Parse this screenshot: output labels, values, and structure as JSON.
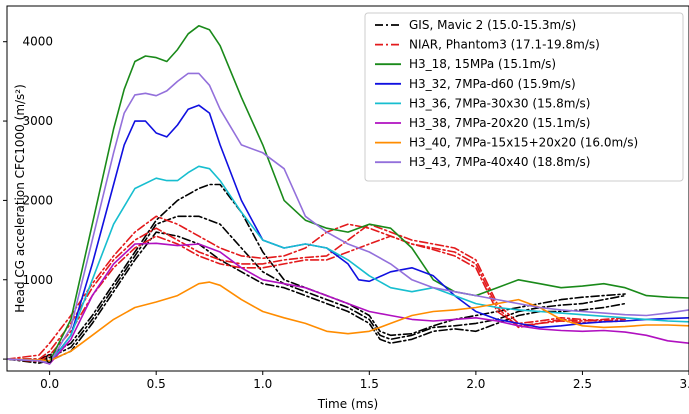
{
  "chart_data": {
    "type": "line",
    "title": "",
    "xlabel": "Time (ms)",
    "ylabel": "Head CG acceleration CFC1000 (m/s²)",
    "xlim": [
      -0.2,
      3.0
    ],
    "ylim": [
      -150,
      4450
    ],
    "x_ticks": [
      0.0,
      0.5,
      1.0,
      1.5,
      2.0,
      2.5,
      3.0
    ],
    "x_tick_labels": [
      "0.0",
      "0.5",
      "1.0",
      "1.5",
      "2.0",
      "2.5",
      "3.0"
    ],
    "y_ticks": [
      0,
      1000,
      2000,
      3000,
      4000
    ],
    "y_tick_labels": [
      "0",
      "1000",
      "2000",
      "3000",
      "4000"
    ],
    "grid": false,
    "legend_position": "top-right",
    "series": [
      {
        "name": "GIS, Mavic 2 (15.0-15.3m/s)",
        "color": "#000000",
        "dash": "dashdot",
        "traces": [
          {
            "x": [
              -0.2,
              -0.05,
              0.0,
              0.1,
              0.2,
              0.3,
              0.4,
              0.5,
              0.6,
              0.7,
              0.75,
              0.8,
              0.9,
              1.0,
              1.1,
              1.2,
              1.3,
              1.4,
              1.5,
              1.55,
              1.6,
              1.7,
              1.8,
              1.9,
              2.0,
              2.1,
              2.2,
              2.3,
              2.4,
              2.5,
              2.6,
              2.7
            ],
            "y": [
              0,
              0,
              50,
              200,
              550,
              950,
              1350,
              1750,
              2000,
              2150,
              2200,
              2200,
              1850,
              1350,
              1000,
              900,
              800,
              700,
              550,
              350,
              300,
              320,
              420,
              500,
              550,
              600,
              650,
              700,
              750,
              780,
              800,
              820
            ]
          },
          {
            "x": [
              -0.2,
              -0.05,
              0.0,
              0.1,
              0.2,
              0.3,
              0.4,
              0.5,
              0.6,
              0.7,
              0.75,
              0.8,
              0.9,
              1.0,
              1.1,
              1.2,
              1.3,
              1.4,
              1.5,
              1.55,
              1.6,
              1.7,
              1.8,
              1.9,
              2.0,
              2.1,
              2.2,
              2.3,
              2.4,
              2.5,
              2.6,
              2.7
            ],
            "y": [
              0,
              -30,
              20,
              150,
              500,
              900,
              1300,
              1700,
              1800,
              1800,
              1750,
              1700,
              1400,
              1100,
              950,
              850,
              750,
              650,
              500,
              300,
              250,
              300,
              400,
              420,
              450,
              500,
              600,
              650,
              680,
              700,
              750,
              800
            ]
          },
          {
            "x": [
              -0.2,
              -0.05,
              0.0,
              0.1,
              0.2,
              0.3,
              0.4,
              0.5,
              0.6,
              0.7,
              0.75,
              0.8,
              0.9,
              1.0,
              1.1,
              1.2,
              1.3,
              1.4,
              1.5,
              1.55,
              1.6,
              1.7,
              1.8,
              1.9,
              2.0,
              2.1,
              2.2,
              2.3,
              2.4,
              2.5,
              2.6,
              2.7
            ],
            "y": [
              0,
              -50,
              -20,
              100,
              450,
              850,
              1250,
              1600,
              1550,
              1450,
              1350,
              1250,
              1100,
              950,
              900,
              800,
              700,
              600,
              450,
              250,
              200,
              250,
              350,
              380,
              350,
              450,
              550,
              600,
              600,
              620,
              650,
              700
            ]
          }
        ]
      },
      {
        "name": "NIAR, Phantom3 (17.1-19.8m/s)",
        "color": "#e31a1c",
        "dash": "dashdot",
        "traces": [
          {
            "x": [
              -0.2,
              -0.05,
              0.0,
              0.1,
              0.2,
              0.3,
              0.4,
              0.5,
              0.6,
              0.7,
              0.8,
              0.9,
              1.0,
              1.1,
              1.2,
              1.3,
              1.4,
              1.5,
              1.6,
              1.7,
              1.8,
              1.9,
              2.0,
              2.1,
              2.2,
              2.3,
              2.4,
              2.5,
              2.6,
              2.7
            ],
            "y": [
              0,
              50,
              200,
              550,
              950,
              1300,
              1600,
              1800,
              1700,
              1550,
              1400,
              1300,
              1270,
              1300,
              1400,
              1600,
              1700,
              1650,
              1550,
              1450,
              1400,
              1350,
              1200,
              650,
              400,
              450,
              500,
              480,
              500,
              520
            ]
          },
          {
            "x": [
              -0.2,
              -0.05,
              0.0,
              0.1,
              0.2,
              0.3,
              0.4,
              0.5,
              0.6,
              0.7,
              0.8,
              0.9,
              1.0,
              1.1,
              1.2,
              1.3,
              1.4,
              1.5,
              1.6,
              1.7,
              1.8,
              1.9,
              2.0,
              2.1,
              2.2,
              2.3,
              2.4,
              2.5,
              2.6,
              2.7
            ],
            "y": [
              0,
              0,
              100,
              450,
              900,
              1250,
              1500,
              1650,
              1500,
              1350,
              1250,
              1200,
              1200,
              1250,
              1280,
              1300,
              1500,
              1700,
              1600,
              1500,
              1450,
              1400,
              1250,
              700,
              450,
              480,
              520,
              500,
              480,
              500
            ]
          },
          {
            "x": [
              -0.2,
              -0.05,
              0.0,
              0.1,
              0.2,
              0.3,
              0.4,
              0.5,
              0.6,
              0.7,
              0.8,
              0.9,
              1.0,
              1.1,
              1.2,
              1.3,
              1.4,
              1.5,
              1.6,
              1.7,
              1.8,
              1.9,
              2.0,
              2.1,
              2.2,
              2.3,
              2.4,
              2.5,
              2.6,
              2.7
            ],
            "y": [
              0,
              -30,
              50,
              350,
              800,
              1150,
              1400,
              1550,
              1450,
              1300,
              1200,
              1150,
              1150,
              1200,
              1250,
              1250,
              1350,
              1450,
              1550,
              1450,
              1380,
              1300,
              1150,
              600,
              420,
              450,
              480,
              460,
              470,
              480
            ]
          }
        ]
      },
      {
        "name": "H3_18, 15MPa (15.1m/s)",
        "color": "#1a8a1a",
        "dash": "solid",
        "traces": [
          {
            "x": [
              -0.2,
              -0.05,
              0.0,
              0.1,
              0.2,
              0.3,
              0.35,
              0.4,
              0.45,
              0.5,
              0.55,
              0.6,
              0.65,
              0.7,
              0.75,
              0.8,
              0.9,
              1.0,
              1.1,
              1.2,
              1.3,
              1.4,
              1.5,
              1.6,
              1.7,
              1.8,
              1.9,
              2.0,
              2.1,
              2.2,
              2.3,
              2.4,
              2.5,
              2.6,
              2.7,
              2.8,
              2.9,
              3.0
            ],
            "y": [
              0,
              -20,
              -30,
              500,
              1700,
              2900,
              3400,
              3750,
              3820,
              3800,
              3750,
              3900,
              4100,
              4200,
              4150,
              3950,
              3300,
              2700,
              2000,
              1750,
              1650,
              1600,
              1700,
              1650,
              1400,
              1000,
              850,
              800,
              900,
              1000,
              950,
              900,
              920,
              950,
              900,
              800,
              780,
              770
            ]
          }
        ]
      },
      {
        "name": "H3_32, 7MPa-d60 (15.9m/s)",
        "color": "#1010e0",
        "dash": "solid",
        "traces": [
          {
            "x": [
              -0.2,
              -0.05,
              0.0,
              0.1,
              0.2,
              0.3,
              0.35,
              0.4,
              0.45,
              0.5,
              0.55,
              0.6,
              0.65,
              0.7,
              0.75,
              0.8,
              0.9,
              1.0,
              1.1,
              1.2,
              1.3,
              1.4,
              1.45,
              1.5,
              1.6,
              1.7,
              1.8,
              1.9,
              2.0,
              2.1,
              2.2,
              2.3,
              2.4,
              2.5,
              2.6,
              2.7,
              2.8,
              2.9,
              3.0
            ],
            "y": [
              0,
              -20,
              -50,
              300,
              1200,
              2200,
              2700,
              3000,
              3000,
              2850,
              2800,
              2950,
              3150,
              3200,
              3100,
              2700,
              2000,
              1500,
              1400,
              1450,
              1400,
              1200,
              1000,
              980,
              1100,
              1150,
              1050,
              800,
              600,
              500,
              450,
              400,
              420,
              450,
              470,
              480,
              500,
              510,
              520
            ]
          }
        ]
      },
      {
        "name": "H3_36, 7MPa-30x30 (15.8m/s)",
        "color": "#17becf",
        "dash": "solid",
        "traces": [
          {
            "x": [
              -0.2,
              -0.05,
              0.0,
              0.1,
              0.2,
              0.3,
              0.4,
              0.5,
              0.55,
              0.6,
              0.65,
              0.7,
              0.75,
              0.8,
              0.9,
              1.0,
              1.1,
              1.2,
              1.3,
              1.4,
              1.5,
              1.6,
              1.7,
              1.8,
              1.9,
              2.0,
              2.1,
              2.2,
              2.3,
              2.4,
              2.5,
              2.6,
              2.7,
              2.8,
              2.9,
              3.0
            ],
            "y": [
              0,
              -20,
              -60,
              300,
              1000,
              1700,
              2150,
              2280,
              2250,
              2250,
              2350,
              2430,
              2400,
              2250,
              1850,
              1500,
              1400,
              1450,
              1400,
              1250,
              1050,
              900,
              850,
              900,
              800,
              700,
              650,
              620,
              600,
              580,
              560,
              540,
              520,
              500,
              480,
              470
            ]
          }
        ]
      },
      {
        "name": "H3_38, 7MPa-20x20 (15.1m/s)",
        "color": "#b010c0",
        "dash": "solid",
        "traces": [
          {
            "x": [
              -0.2,
              -0.05,
              0.0,
              0.1,
              0.2,
              0.3,
              0.4,
              0.5,
              0.6,
              0.7,
              0.8,
              0.9,
              1.0,
              1.1,
              1.2,
              1.3,
              1.4,
              1.5,
              1.6,
              1.7,
              1.8,
              1.9,
              2.0,
              2.1,
              2.2,
              2.3,
              2.4,
              2.5,
              2.6,
              2.7,
              2.8,
              2.9,
              3.0
            ],
            "y": [
              0,
              -20,
              -60,
              250,
              800,
              1200,
              1450,
              1460,
              1430,
              1450,
              1350,
              1150,
              1000,
              950,
              900,
              800,
              700,
              600,
              550,
              500,
              480,
              500,
              520,
              480,
              420,
              380,
              360,
              350,
              360,
              340,
              300,
              230,
              200
            ]
          }
        ]
      },
      {
        "name": "H3_40, 7MPa-15x15+20x20 (16.0m/s)",
        "color": "#ff8c00",
        "dash": "solid",
        "traces": [
          {
            "x": [
              -0.2,
              -0.05,
              0.0,
              0.1,
              0.2,
              0.3,
              0.4,
              0.5,
              0.6,
              0.7,
              0.75,
              0.8,
              0.9,
              1.0,
              1.1,
              1.2,
              1.3,
              1.4,
              1.5,
              1.6,
              1.7,
              1.8,
              1.9,
              2.0,
              2.1,
              2.2,
              2.3,
              2.4,
              2.5,
              2.6,
              2.7,
              2.8,
              2.9,
              3.0
            ],
            "y": [
              0,
              -10,
              -20,
              100,
              300,
              500,
              650,
              720,
              800,
              950,
              970,
              930,
              750,
              600,
              520,
              450,
              350,
              320,
              350,
              450,
              550,
              600,
              620,
              650,
              700,
              750,
              650,
              500,
              420,
              400,
              410,
              430,
              430,
              420
            ]
          }
        ]
      },
      {
        "name": "H3_43, 7MPa-40x40 (18.8m/s)",
        "color": "#9370db",
        "dash": "solid",
        "traces": [
          {
            "x": [
              -0.2,
              -0.05,
              0.0,
              0.1,
              0.2,
              0.3,
              0.35,
              0.4,
              0.45,
              0.5,
              0.55,
              0.6,
              0.65,
              0.7,
              0.75,
              0.8,
              0.9,
              1.0,
              1.1,
              1.2,
              1.3,
              1.4,
              1.5,
              1.6,
              1.7,
              1.8,
              1.9,
              2.0,
              2.1,
              2.2,
              2.3,
              2.4,
              2.5,
              2.6,
              2.7,
              2.8,
              2.9,
              3.0
            ],
            "y": [
              0,
              -20,
              -50,
              400,
              1500,
              2600,
              3100,
              3330,
              3350,
              3320,
              3380,
              3500,
              3600,
              3600,
              3450,
              3150,
              2700,
              2600,
              2400,
              1800,
              1600,
              1450,
              1350,
              1200,
              1000,
              900,
              850,
              800,
              750,
              700,
              650,
              620,
              600,
              580,
              560,
              550,
              580,
              620
            ]
          }
        ]
      }
    ]
  }
}
